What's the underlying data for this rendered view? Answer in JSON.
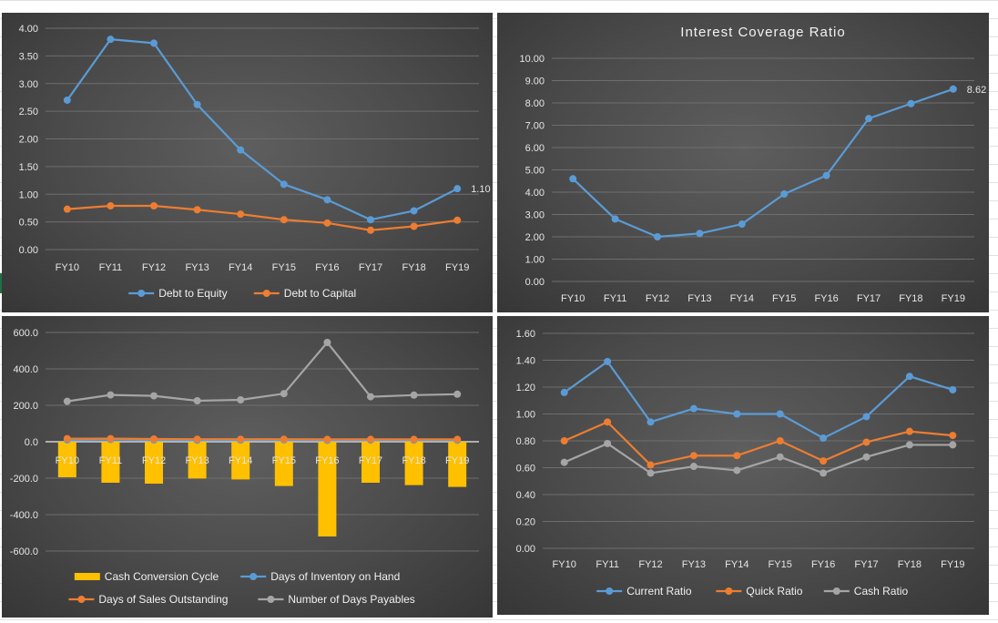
{
  "chart_data": [
    {
      "type": "line",
      "title": "",
      "categories": [
        "FY10",
        "FY11",
        "FY12",
        "FY13",
        "FY14",
        "FY15",
        "FY16",
        "FY17",
        "FY18",
        "FY19"
      ],
      "ylim": [
        0,
        4
      ],
      "yticks": [
        "0.00",
        "0.50",
        "1.00",
        "1.50",
        "2.00",
        "2.50",
        "3.00",
        "3.50",
        "4.00"
      ],
      "grid": true,
      "legend": "bottom",
      "series": [
        {
          "name": "Debt to Equity",
          "color": "#5b9bd5",
          "values": [
            2.7,
            3.8,
            3.73,
            2.62,
            1.8,
            1.18,
            0.9,
            0.54,
            0.7,
            1.1
          ]
        },
        {
          "name": "Debt to Capital",
          "color": "#ed7d31",
          "values": [
            0.73,
            0.79,
            0.79,
            0.72,
            0.64,
            0.54,
            0.48,
            0.35,
            0.42,
            0.53
          ]
        }
      ],
      "annotations": [
        {
          "series": 0,
          "index": 9,
          "text": "1.10"
        }
      ]
    },
    {
      "type": "line",
      "title": "Interest Coverage Ratio",
      "categories": [
        "FY10",
        "FY11",
        "FY12",
        "FY13",
        "FY14",
        "FY15",
        "FY16",
        "FY17",
        "FY18",
        "FY19"
      ],
      "ylim": [
        0,
        10
      ],
      "yticks": [
        "0.00",
        "1.00",
        "2.00",
        "3.00",
        "4.00",
        "5.00",
        "6.00",
        "7.00",
        "8.00",
        "9.00",
        "10.00"
      ],
      "grid": true,
      "legend": "none",
      "series": [
        {
          "name": "",
          "color": "#5b9bd5",
          "values": [
            4.6,
            2.8,
            2.0,
            2.15,
            2.57,
            3.92,
            4.75,
            7.3,
            7.97,
            8.62
          ]
        }
      ],
      "annotations": [
        {
          "series": 0,
          "index": 9,
          "text": "8.62"
        }
      ]
    },
    {
      "type": "bar",
      "title": "",
      "categories": [
        "FY10",
        "FY11",
        "FY12",
        "FY13",
        "FY14",
        "FY15",
        "FY16",
        "FY17",
        "FY18",
        "FY19"
      ],
      "ylim": [
        -600,
        600
      ],
      "yticks": [
        "-600.0",
        "-400.0",
        "-200.0",
        "0.0",
        "200.0",
        "400.0",
        "600.0"
      ],
      "grid": true,
      "legend": "bottom",
      "series": [
        {
          "name": "Cash Conversion Cycle",
          "type": "bar",
          "color": "#ffc000",
          "values": [
            -195,
            -225,
            -230,
            -202,
            -207,
            -243,
            -520,
            -225,
            -238,
            -248
          ]
        },
        {
          "name": "Days of Inventory on Hand",
          "type": "line",
          "color": "#5b9bd5",
          "values": [
            10,
            12,
            10,
            8,
            9,
            10,
            8,
            9,
            9,
            8
          ]
        },
        {
          "name": "Days of Sales Outstanding",
          "type": "line",
          "color": "#ed7d31",
          "values": [
            17,
            17,
            15,
            14,
            14,
            14,
            13,
            13,
            13,
            13
          ]
        },
        {
          "name": "Number of Days Payables",
          "type": "line",
          "color": "#a5a5a5",
          "values": [
            222,
            257,
            252,
            225,
            230,
            264,
            545,
            247,
            256,
            261
          ]
        }
      ]
    },
    {
      "type": "line",
      "title": "",
      "categories": [
        "FY10",
        "FY11",
        "FY12",
        "FY13",
        "FY14",
        "FY15",
        "FY16",
        "FY17",
        "FY18",
        "FY19"
      ],
      "ylim": [
        0,
        1.6
      ],
      "yticks": [
        "0.00",
        "0.20",
        "0.40",
        "0.60",
        "0.80",
        "1.00",
        "1.20",
        "1.40",
        "1.60"
      ],
      "grid": true,
      "legend": "bottom",
      "series": [
        {
          "name": "Current Ratio",
          "color": "#5b9bd5",
          "values": [
            1.16,
            1.39,
            0.94,
            1.04,
            1.0,
            1.0,
            0.82,
            0.98,
            1.28,
            1.18
          ]
        },
        {
          "name": "Quick Ratio",
          "color": "#ed7d31",
          "values": [
            0.8,
            0.94,
            0.62,
            0.69,
            0.69,
            0.8,
            0.65,
            0.79,
            0.87,
            0.84
          ]
        },
        {
          "name": "Cash Ratio",
          "color": "#a5a5a5",
          "values": [
            0.64,
            0.78,
            0.56,
            0.61,
            0.58,
            0.68,
            0.56,
            0.68,
            0.77,
            0.77
          ]
        }
      ]
    }
  ]
}
